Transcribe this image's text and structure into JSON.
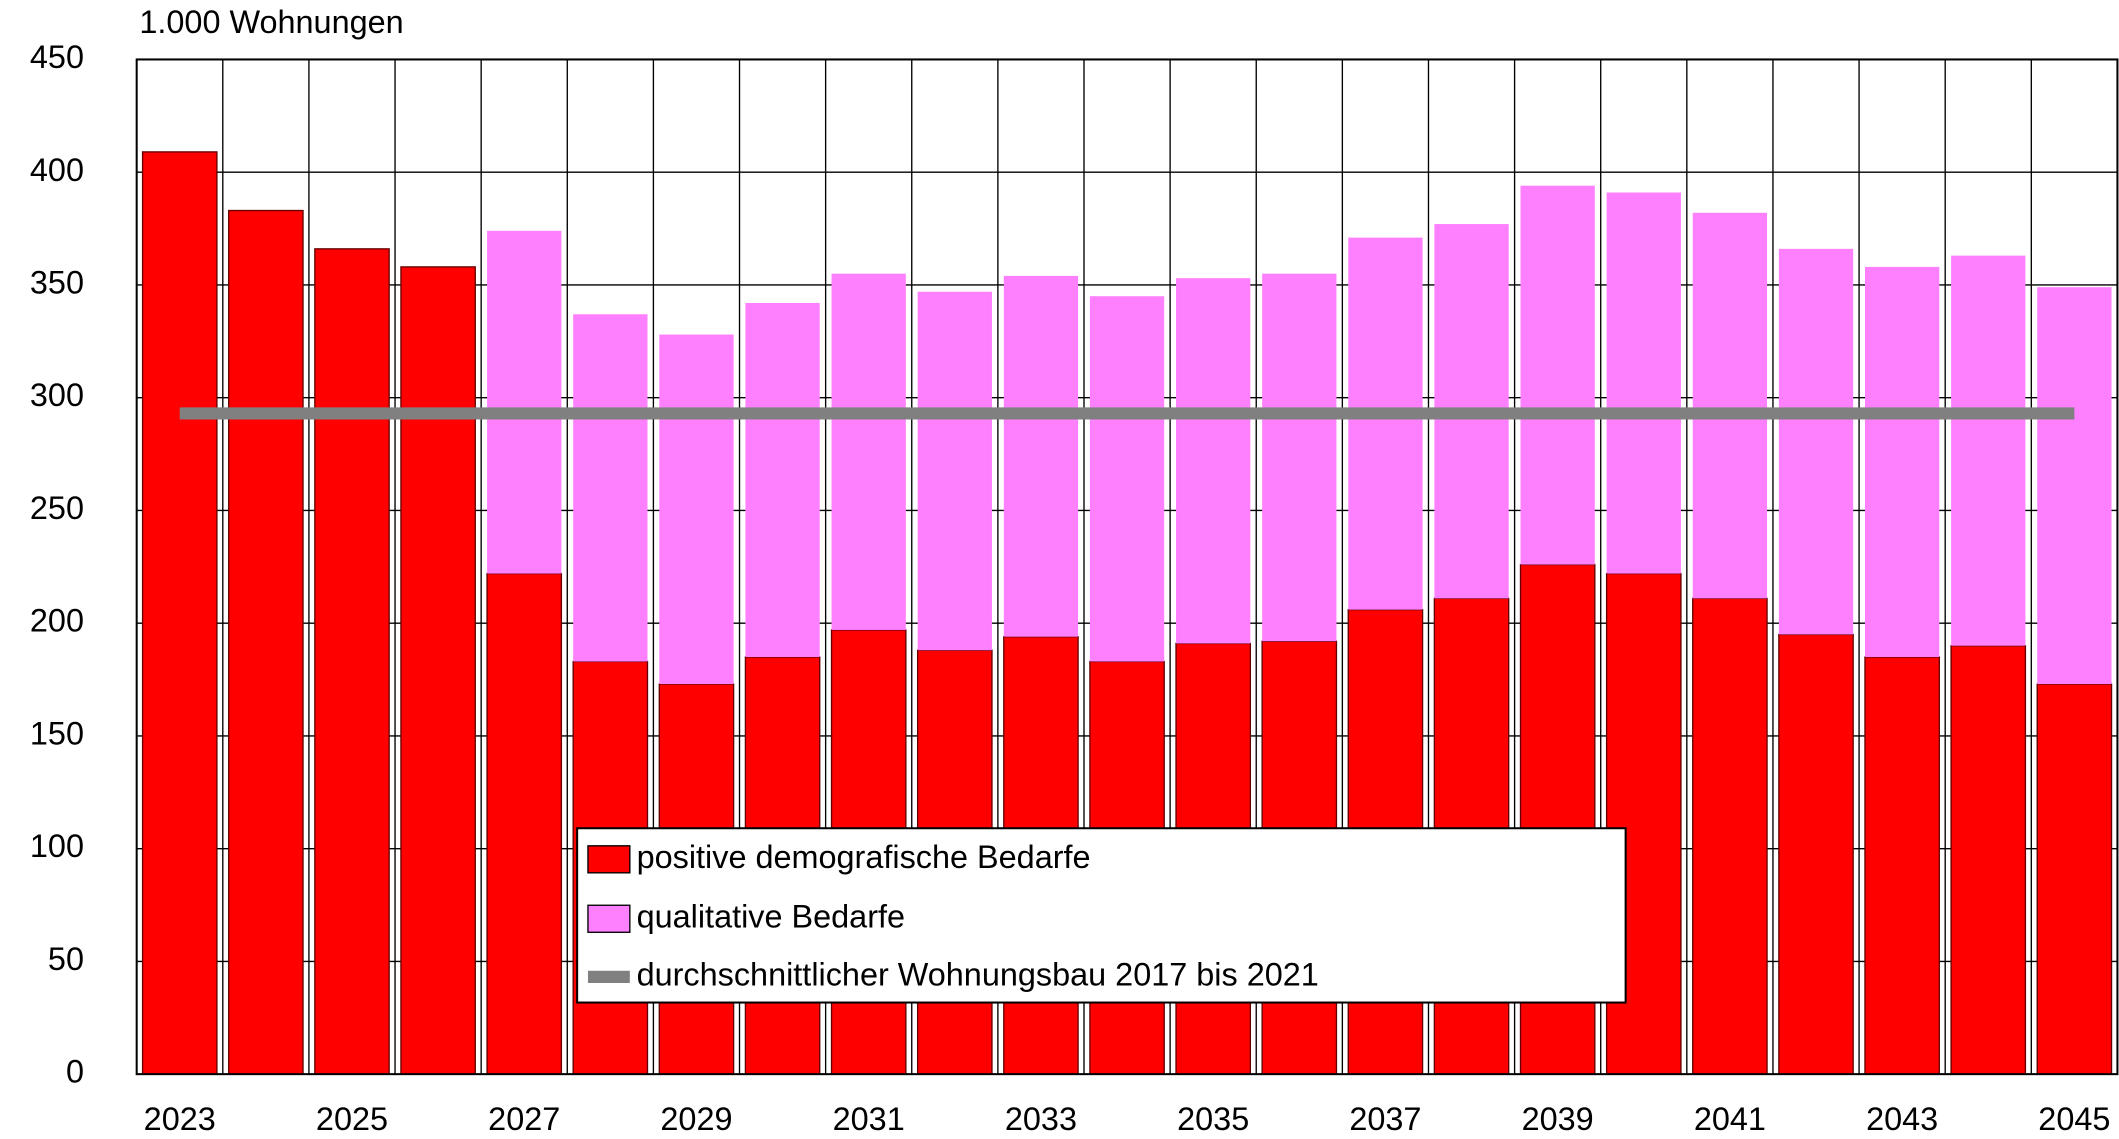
{
  "chart_data": {
    "type": "stacked_bar",
    "ylabel": "1.000 Wohnungen",
    "categories": [
      "2023",
      null,
      "2025",
      null,
      "2027",
      null,
      "2029",
      null,
      "2031",
      null,
      "2033",
      null,
      "2035",
      null,
      "2037",
      null,
      "2039",
      null,
      "2041",
      null,
      "2043",
      null,
      "2045"
    ],
    "series": [
      {
        "name": "positive demografische Bedarfe",
        "color": "#ff0000",
        "values": [
          409,
          383,
          366,
          358,
          222,
          183,
          173,
          185,
          197,
          188,
          194,
          183,
          191,
          192,
          206,
          211,
          226,
          222,
          211,
          195,
          185,
          190,
          173
        ]
      },
      {
        "name": "qualitative Bedarfe",
        "color": "#ff80ff",
        "values": [
          null,
          null,
          null,
          null,
          152,
          154,
          155,
          157,
          158,
          159,
          160,
          162,
          162,
          163,
          165,
          166,
          168,
          169,
          171,
          171,
          173,
          173,
          176
        ]
      }
    ],
    "reference_line": {
      "name": "durchschnittlicher Wohnungsbau 2017 bis 2021",
      "color": "#808080",
      "value": 293
    },
    "ylim": [
      0,
      450
    ],
    "yticks": [
      0,
      50,
      100,
      150,
      200,
      250,
      300,
      350,
      400,
      450
    ],
    "grid": true
  }
}
